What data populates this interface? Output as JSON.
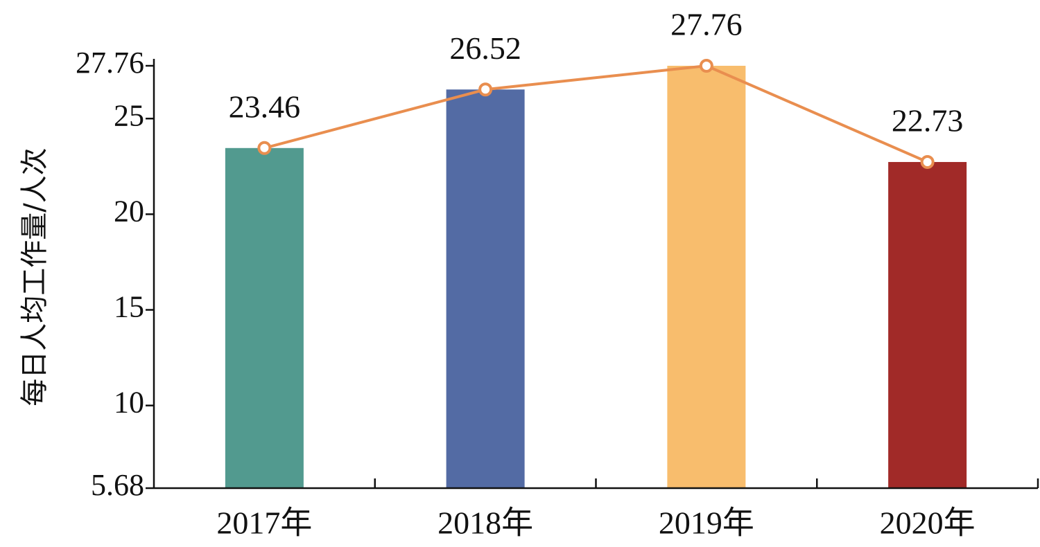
{
  "chart_data": {
    "type": "bar",
    "categories": [
      "2017年",
      "2018年",
      "2019年",
      "2020年"
    ],
    "values": [
      23.46,
      26.52,
      27.76,
      22.73
    ],
    "data_labels": [
      "23.46",
      "26.52",
      "27.76",
      "22.73"
    ],
    "bar_colors": [
      "#529a8f",
      "#536ba4",
      "#f8bd6d",
      "#a12a28"
    ],
    "line_overlay": {
      "values": [
        23.46,
        26.52,
        27.76,
        22.73
      ],
      "color": "#e98e4f"
    },
    "ylabel": "每日人均工作量/人次",
    "xlabel": "",
    "title": "",
    "ylim": [
      5.68,
      27.76
    ],
    "yticks": [
      5.68,
      10,
      15,
      20,
      25,
      27.76
    ],
    "ytick_labels": [
      "5.68",
      "10",
      "15",
      "20",
      "25",
      "27.76"
    ],
    "grid": false,
    "legend": "none"
  }
}
